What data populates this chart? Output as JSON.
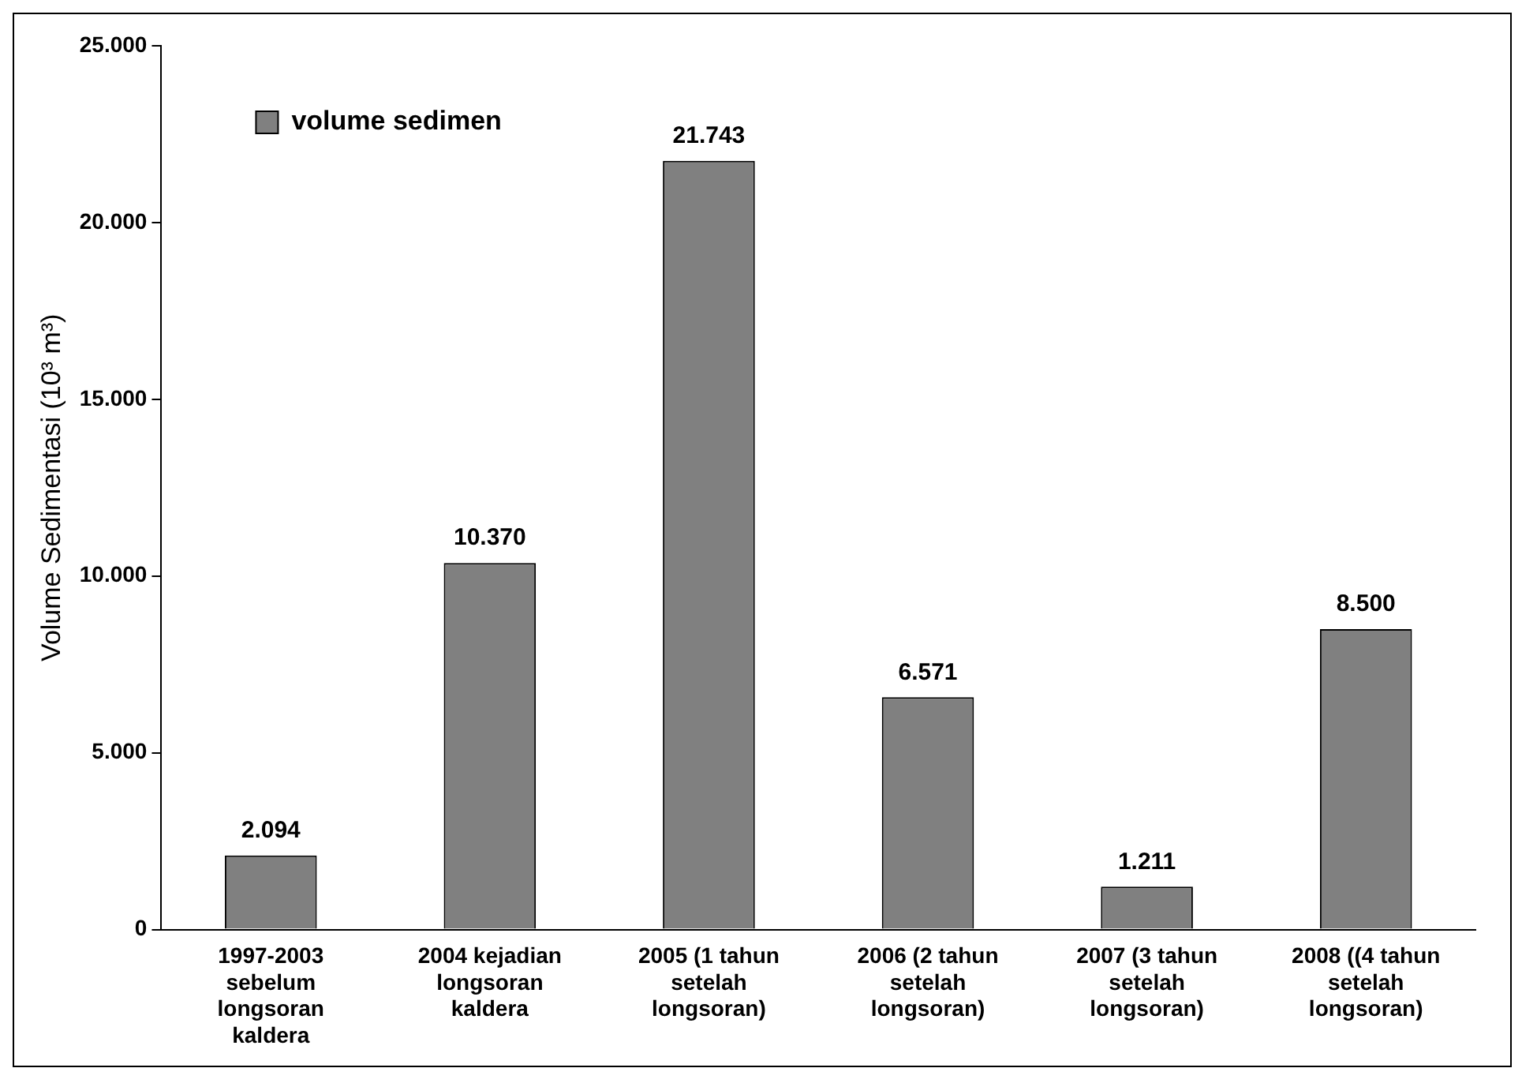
{
  "chart_data": {
    "type": "bar",
    "ylabel": "Volume Sedimentasi (10³ m³)",
    "categories": [
      "1997-2003 sebelum longsoran kaldera",
      "2004 kejadian longsoran kaldera",
      "2005 (1 tahun setelah longsoran)",
      "2006 (2 tahun setelah longsoran)",
      "2007 (3 tahun setelah longsoran)",
      "2008 ((4 tahun setelah longsoran)"
    ],
    "series": [
      {
        "name": "volume sedimen",
        "color": "#808080",
        "values": [
          2094,
          10370,
          21743,
          6571,
          1211,
          8500
        ],
        "value_labels": [
          "2.094",
          "10.370",
          "21.743",
          "6.571",
          "1.211",
          "8.500"
        ]
      }
    ],
    "ylim": [
      0,
      25000
    ],
    "yticks": [
      {
        "value": 0,
        "label": "0"
      },
      {
        "value": 5000,
        "label": "5.000"
      },
      {
        "value": 10000,
        "label": "10.000"
      },
      {
        "value": 15000,
        "label": "15.000"
      },
      {
        "value": 20000,
        "label": "20.000"
      },
      {
        "value": 25000,
        "label": "25.000"
      }
    ],
    "grid": false,
    "legend": "top left"
  }
}
